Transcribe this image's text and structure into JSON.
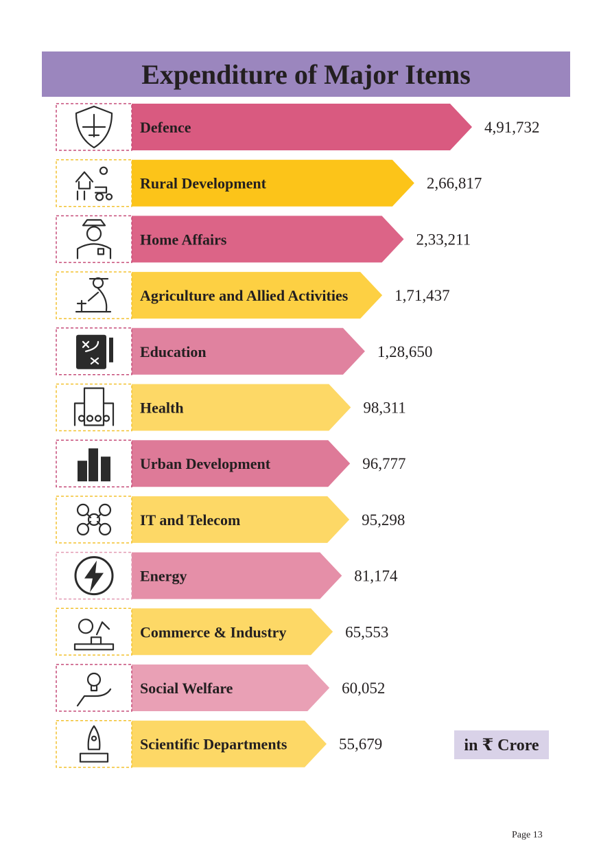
{
  "header": {
    "title": "Expenditure of Major Items"
  },
  "unit_label": "in ₹ Crore",
  "page_label": "Page 13",
  "colors": {
    "title_bg": "#9b86be",
    "pink": "#d95a80",
    "yellow": "#fcc419",
    "unit_bg": "#d9d2e8"
  },
  "chart_data": {
    "type": "bar",
    "orientation": "horizontal",
    "title": "Expenditure of Major Items",
    "unit": "in ₹ Crore",
    "categories": [
      "Defence",
      "Rural Development",
      "Home Affairs",
      "Agriculture and Allied Activities",
      "Education",
      "Health",
      "Urban Development",
      "IT and Telecom",
      "Energy",
      "Commerce & Industry",
      "Social Welfare",
      "Scientific Departments"
    ],
    "values": [
      491732,
      266817,
      233211,
      171437,
      128650,
      98311,
      96777,
      95298,
      81174,
      65553,
      60052,
      55679
    ],
    "value_labels": [
      "4,91,732",
      "2,66,817",
      "2,33,211",
      "1,71,437",
      "1,28,650",
      "98,311",
      "96,777",
      "95,298",
      "81,174",
      "65,553",
      "60,052",
      "55,679"
    ],
    "icons": [
      "shield-jet-icon",
      "farm-tractor-icon",
      "police-officer-icon",
      "farmer-planting-icon",
      "strategy-board-icon",
      "hospital-building-icon",
      "city-buildings-icon",
      "network-people-icon",
      "lightning-bolt-icon",
      "factory-robot-arm-icon",
      "idea-bulb-hand-icon",
      "rocket-launch-icon"
    ],
    "bar_colors": [
      "#d95a80",
      "#fcc419",
      "#dc6487",
      "#fdd043",
      "#e0829f",
      "#fdd866",
      "#de7a98",
      "#fdd866",
      "#e58fa8",
      "#fdd866",
      "#e9a0b5",
      "#fdd866"
    ],
    "frame_colors": [
      "#c64c78",
      "#f2c12e",
      "#c64c78",
      "#f2c12e",
      "#c64c78",
      "#f2c12e",
      "#c64c78",
      "#f2c12e",
      "#e29bb3",
      "#f2c12e",
      "#c64c78",
      "#f2c12e"
    ]
  }
}
